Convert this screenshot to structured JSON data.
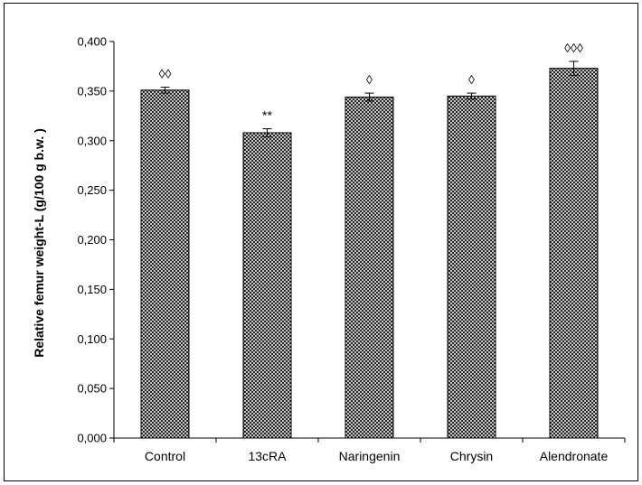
{
  "chart_data": {
    "type": "bar",
    "title": "",
    "xlabel": "",
    "ylabel": "Relative femur weight-L  (g/100 g b.w. )",
    "ylim": [
      0,
      0.4
    ],
    "yticks": [
      "0,000",
      "0,050",
      "0,100",
      "0,150",
      "0,200",
      "0,250",
      "0,300",
      "0,350",
      "0,400"
    ],
    "categories": [
      "Control",
      "13cRA",
      "Naringenin",
      "Chrysin",
      "Alendronate"
    ],
    "values": [
      0.351,
      0.308,
      0.344,
      0.345,
      0.373
    ],
    "errors": [
      0.003,
      0.004,
      0.004,
      0.003,
      0.007
    ],
    "annotations": [
      "◊◊",
      "**",
      "◊",
      "◊",
      "◊◊◊"
    ],
    "bar_pattern": "crosshatch",
    "bar_color": "#000000",
    "grid": false,
    "legend": "none"
  }
}
